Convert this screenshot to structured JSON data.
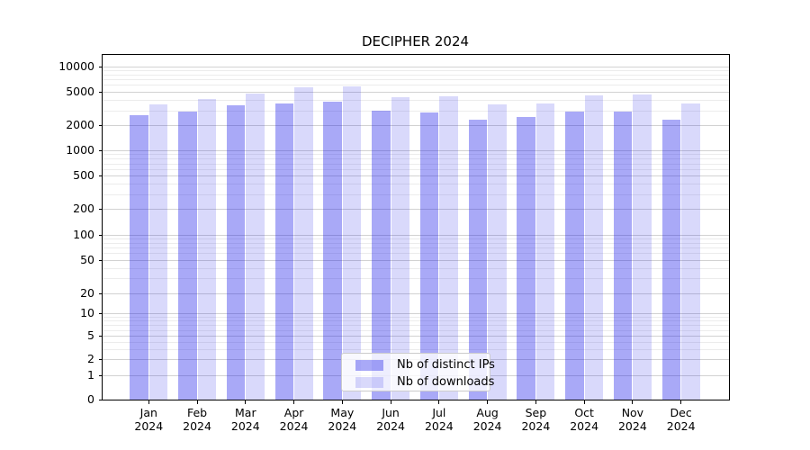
{
  "chart_data": {
    "type": "bar",
    "title": "DECIPHER 2024",
    "categories": [
      "Jan 2024",
      "Feb 2024",
      "Mar 2024",
      "Apr 2024",
      "May 2024",
      "Jun 2024",
      "Jul 2024",
      "Aug 2024",
      "Sep 2024",
      "Oct 2024",
      "Nov 2024",
      "Dec 2024"
    ],
    "x_tick_lines": [
      {
        "month": "Jan",
        "year": "2024"
      },
      {
        "month": "Feb",
        "year": "2024"
      },
      {
        "month": "Mar",
        "year": "2024"
      },
      {
        "month": "Apr",
        "year": "2024"
      },
      {
        "month": "May",
        "year": "2024"
      },
      {
        "month": "Jun",
        "year": "2024"
      },
      {
        "month": "Jul",
        "year": "2024"
      },
      {
        "month": "Aug",
        "year": "2024"
      },
      {
        "month": "Sep",
        "year": "2024"
      },
      {
        "month": "Oct",
        "year": "2024"
      },
      {
        "month": "Nov",
        "year": "2024"
      },
      {
        "month": "Dec",
        "year": "2024"
      }
    ],
    "series": [
      {
        "name": "Nb of distinct IPs",
        "color": "rgba(16,16,232,0.36)",
        "color_hex_on_white": "#aaaaf6",
        "values": [
          2600,
          2870,
          3410,
          3610,
          3800,
          3000,
          2820,
          2330,
          2520,
          2880,
          2870,
          2330
        ]
      },
      {
        "name": "Nb of downloads",
        "color": "rgba(16,16,232,0.16)",
        "color_hex_on_white": "#d8d8fb",
        "values": [
          3530,
          4070,
          4730,
          5670,
          5720,
          4300,
          4350,
          3560,
          3640,
          4520,
          4660,
          3640
        ]
      }
    ],
    "xlabel": "",
    "ylabel": "",
    "y_scale": "symlog",
    "y_major_ticks": [
      10000,
      5000,
      2000,
      1000,
      500,
      200,
      100,
      50,
      20,
      10,
      5,
      2,
      1,
      0
    ],
    "ylim": [
      0,
      14000
    ],
    "grid": "horizontal major and minor gridlines, light grey",
    "legend_position": "lower center",
    "colors": {
      "axis": "#000000",
      "grid_major": "#d2d2d2",
      "grid_minor": "#ececec",
      "background": "#ffffff"
    }
  }
}
